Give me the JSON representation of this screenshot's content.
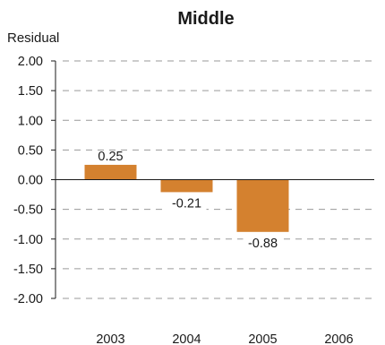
{
  "chart_data": {
    "type": "bar",
    "title": "Middle",
    "ylabel": "Residual",
    "xlabel": "",
    "categories": [
      "2003",
      "2004",
      "2005",
      "2006"
    ],
    "values": [
      0.25,
      -0.21,
      -0.88,
      null
    ],
    "data_labels": [
      "0.25",
      "-0.21",
      "-0.88",
      ""
    ],
    "yticks": [
      "2.00",
      "1.50",
      "1.00",
      "0.50",
      "0.00",
      "-0.50",
      "-1.00",
      "-1.50",
      "-2.00"
    ],
    "ylim": [
      -2.0,
      2.0
    ],
    "grid": "dashed horizontal",
    "legend": "none",
    "bar_color": "#D4812F",
    "grid_color": "#9a9a9a",
    "axis_color": "#1a1a1a"
  }
}
